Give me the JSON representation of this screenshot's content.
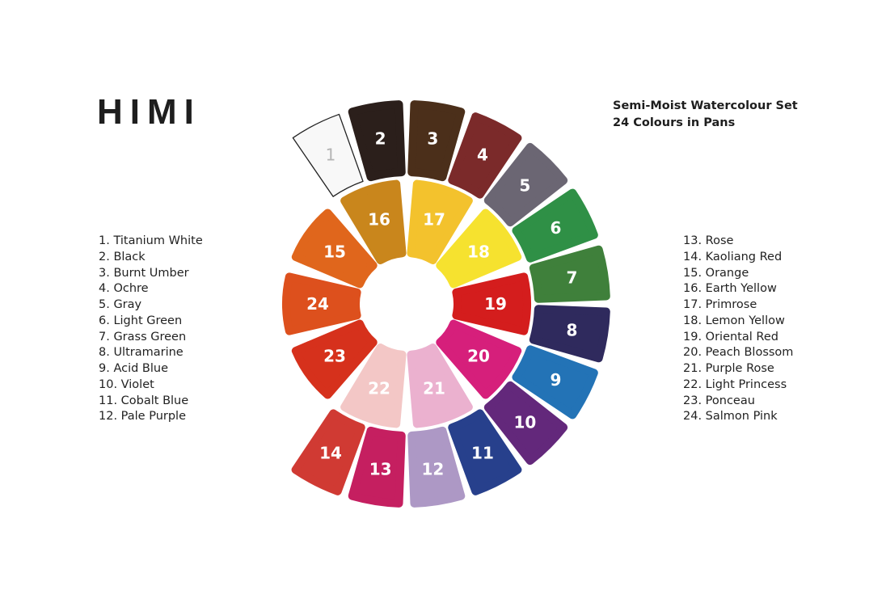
{
  "brand": "HIMI",
  "title": [
    "Semi-Moist Watercolour Set",
    "24 Colours in Pans"
  ],
  "colours": [
    {
      "num": "1",
      "name": "Titanium White",
      "color": "#f8f8f8"
    },
    {
      "num": "2",
      "name": "Black",
      "color": "#2b1f1b"
    },
    {
      "num": "3",
      "name": "Burnt Umber",
      "color": "#4b2f1a"
    },
    {
      "num": "4",
      "name": "Ochre",
      "color": "#7b2a2a"
    },
    {
      "num": "5",
      "name": "Gray",
      "color": "#6b6673"
    },
    {
      "num": "6",
      "name": "Light Green",
      "color": "#2f9046"
    },
    {
      "num": "7",
      "name": "Grass Green",
      "color": "#3f803b"
    },
    {
      "num": "8",
      "name": "Ultramarine",
      "color": "#2f2a5d"
    },
    {
      "num": "9",
      "name": "Acid Blue",
      "color": "#2373b6"
    },
    {
      "num": "10",
      "name": "Violet",
      "color": "#63287b"
    },
    {
      "num": "11",
      "name": "Cobalt Blue",
      "color": "#27408c"
    },
    {
      "num": "12",
      "name": "Pale Purple",
      "color": "#ad98c5"
    },
    {
      "num": "13",
      "name": "Rose",
      "color": "#c51f60"
    },
    {
      "num": "14",
      "name": "Kaoliang Red",
      "color": "#d03a33"
    },
    {
      "num": "15",
      "name": "Orange",
      "color": "#e0661c"
    },
    {
      "num": "16",
      "name": "Earth Yellow",
      "color": "#c9861c"
    },
    {
      "num": "17",
      "name": "Primrose",
      "color": "#f3c22d"
    },
    {
      "num": "18",
      "name": "Lemon Yellow",
      "color": "#f6e22f"
    },
    {
      "num": "19",
      "name": "Oriental Red",
      "color": "#d41d1d"
    },
    {
      "num": "20",
      "name": "Peach Blossom",
      "color": "#d61f7b"
    },
    {
      "num": "21",
      "name": "Purple Rose",
      "color": "#ebb1cf"
    },
    {
      "num": "22",
      "name": "Light Princess",
      "color": "#f3c7c6"
    },
    {
      "num": "23",
      "name": "Ponceau",
      "color": "#d6311c"
    },
    {
      "num": "24",
      "name": "Salmon Pink",
      "color": "#dd501d"
    }
  ]
}
